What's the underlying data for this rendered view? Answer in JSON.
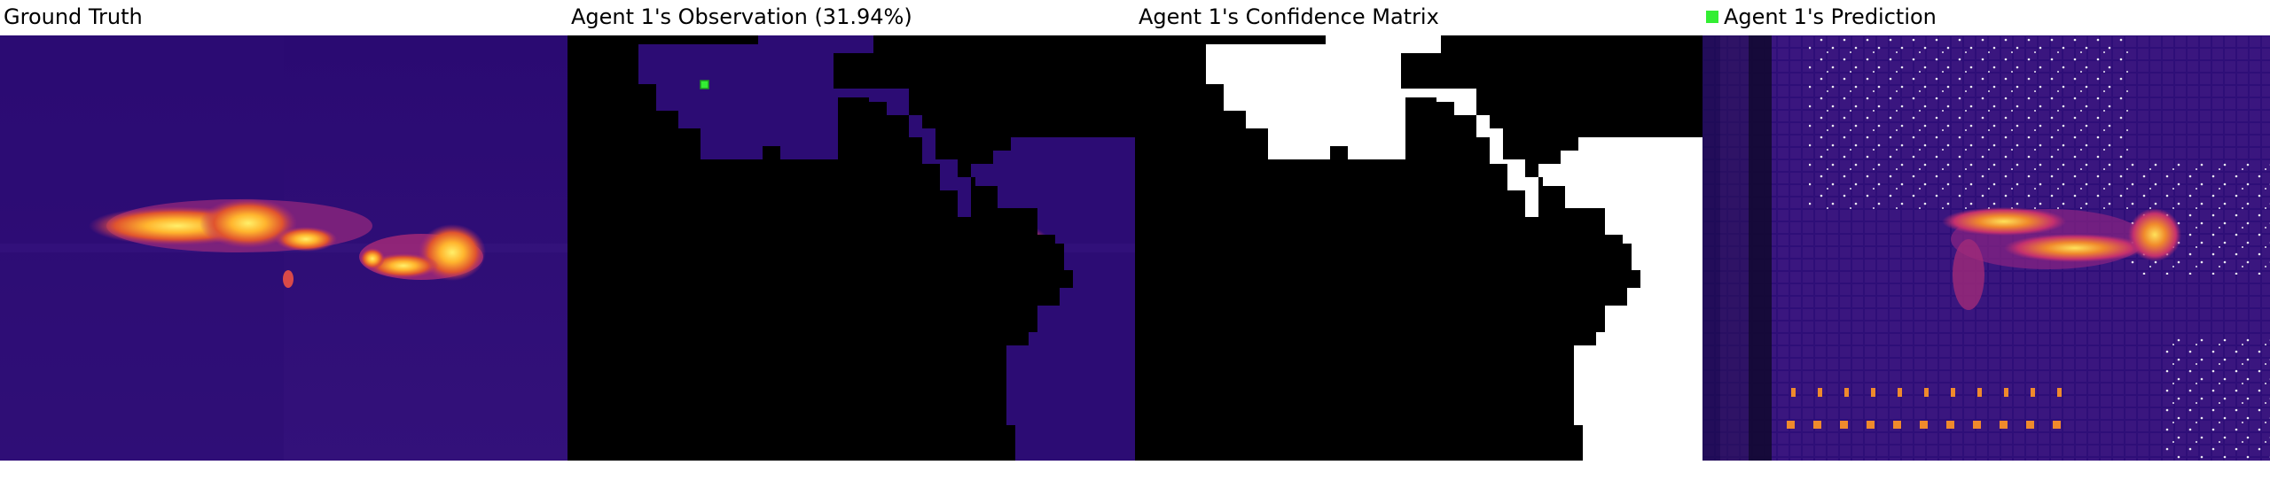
{
  "panels": [
    {
      "title": "Ground Truth"
    },
    {
      "title": "Agent 1's Observation (31.94%)"
    },
    {
      "title": "Agent 1's Confidence Matrix"
    },
    {
      "title": "Agent 1's Prediction",
      "legend_color": "#33ee33"
    }
  ],
  "colors": {
    "background_dark": "#250a6a",
    "masked": "#000000",
    "confident": "#ffffff",
    "hot_core": "#ffd23a",
    "hot_mid": "#f08a2c",
    "hot_edge": "#c4306e",
    "marker_green": "#33ee33"
  }
}
